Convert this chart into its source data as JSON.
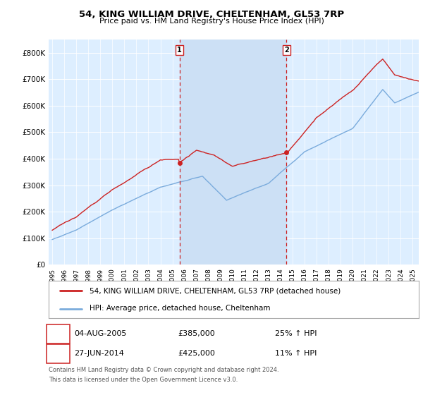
{
  "title": "54, KING WILLIAM DRIVE, CHELTENHAM, GL53 7RP",
  "subtitle": "Price paid vs. HM Land Registry's House Price Index (HPI)",
  "ylim": [
    0,
    850000
  ],
  "yticks": [
    0,
    100000,
    200000,
    300000,
    400000,
    500000,
    600000,
    700000,
    800000
  ],
  "ytick_labels": [
    "£0",
    "£100K",
    "£200K",
    "£300K",
    "£400K",
    "£500K",
    "£600K",
    "£700K",
    "£800K"
  ],
  "hpi_color": "#7aabdc",
  "price_color": "#cc2222",
  "marker_line_color": "#cc2222",
  "shade_color": "#cce0f5",
  "legend_entries": [
    "54, KING WILLIAM DRIVE, CHELTENHAM, GL53 7RP (detached house)",
    "HPI: Average price, detached house, Cheltenham"
  ],
  "transaction1": {
    "label": "1",
    "date": "04-AUG-2005",
    "price": "£385,000",
    "hpi": "25% ↑ HPI",
    "year": 2005.583
  },
  "transaction2": {
    "label": "2",
    "date": "27-JUN-2014",
    "price": "£425,000",
    "hpi": "11% ↑ HPI",
    "year": 2014.5
  },
  "footnote1": "Contains HM Land Registry data © Crown copyright and database right 2024.",
  "footnote2": "This data is licensed under the Open Government Licence v3.0.",
  "plot_bg_color": "#ddeeff",
  "xlim_start": 1994.7,
  "xlim_end": 2025.5
}
